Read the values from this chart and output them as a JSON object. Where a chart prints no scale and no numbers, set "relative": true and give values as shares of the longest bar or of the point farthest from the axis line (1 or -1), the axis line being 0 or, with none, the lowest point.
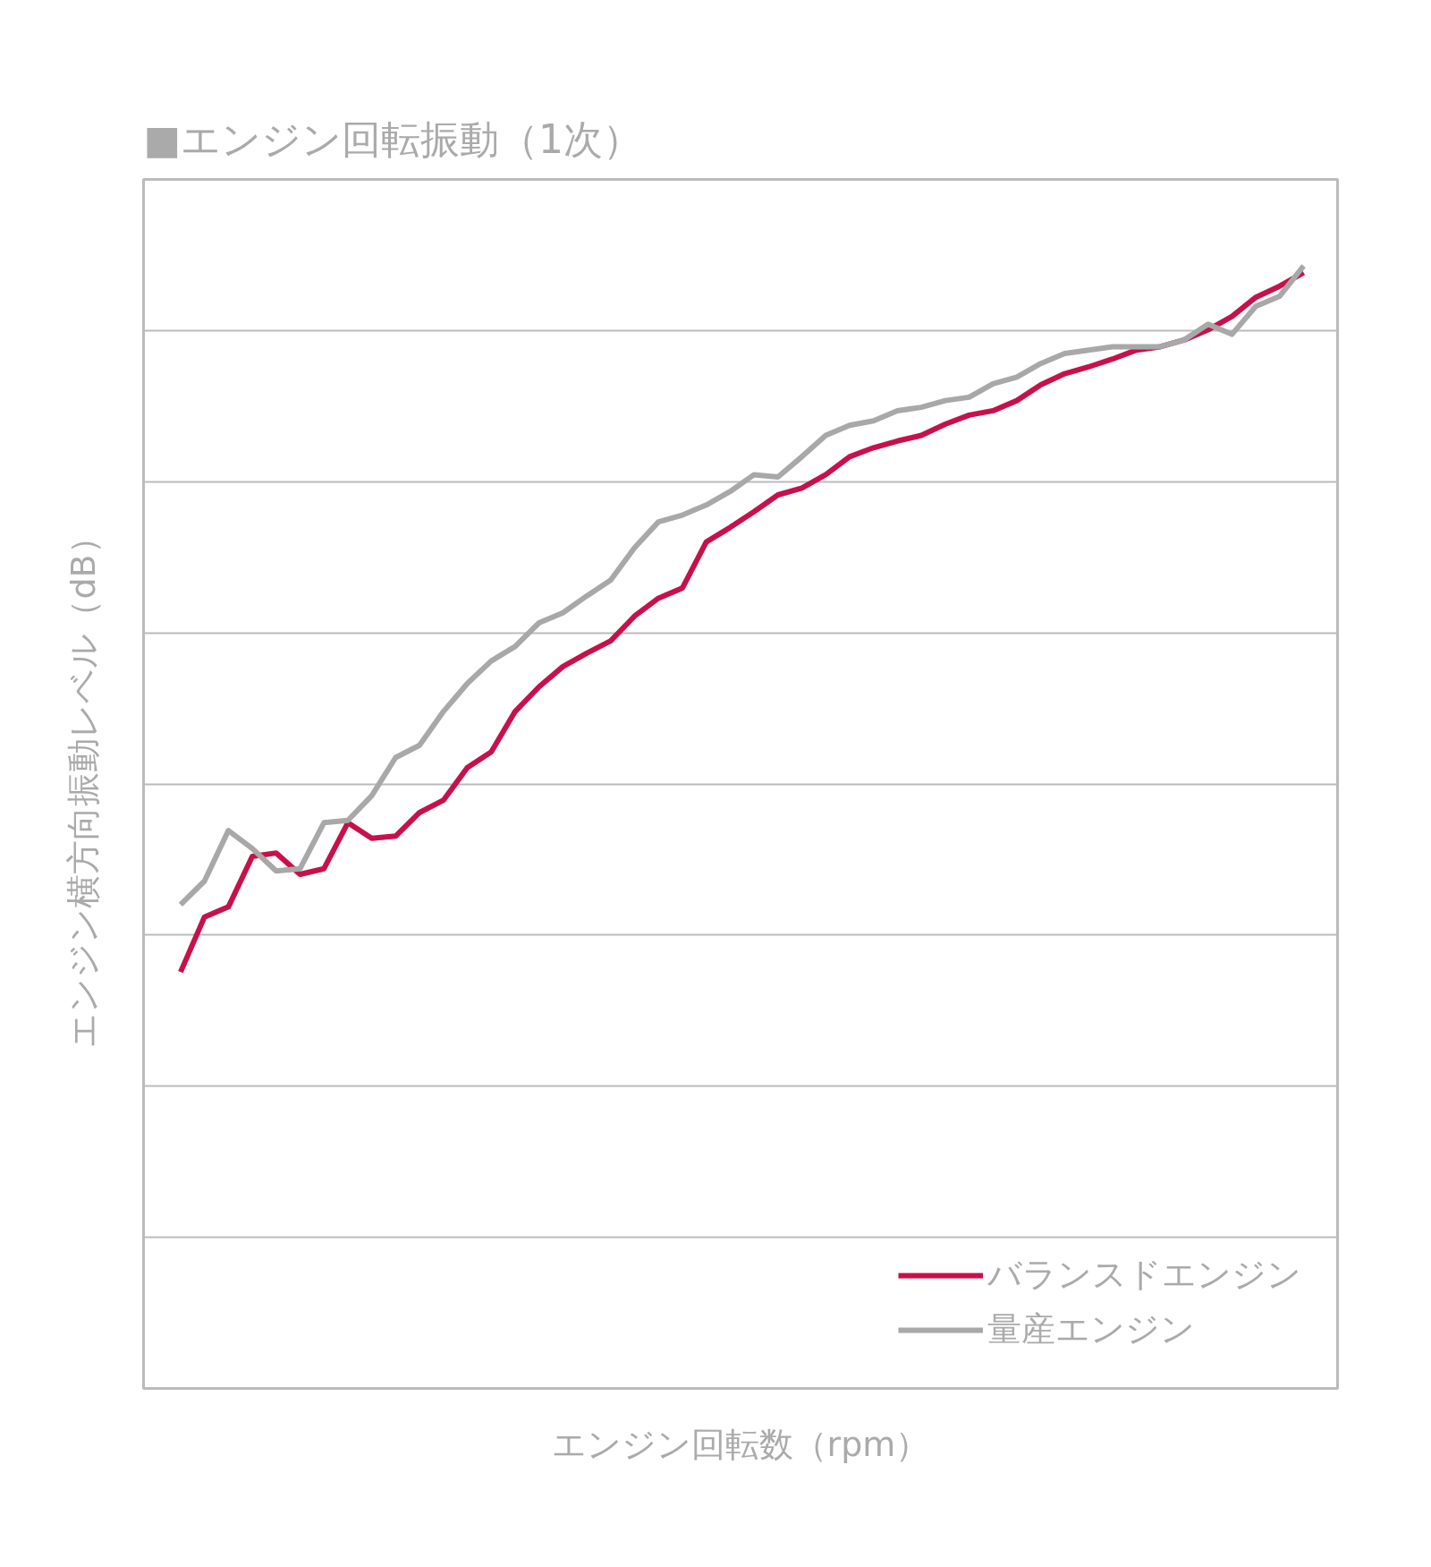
{
  "chart_data": {
    "type": "line",
    "title": "■エンジン回転振動（1次）",
    "xlabel": "エンジン回転数（rpm）",
    "ylabel": "エンジン横方向振動レベル（dB）",
    "relative": true,
    "grid": true,
    "legend": "bottom right",
    "line_style": "solid",
    "marker": "none",
    "categories": [
      null,
      null,
      null,
      null,
      null,
      null,
      null,
      null,
      null,
      null,
      null,
      null,
      null,
      null,
      null,
      null,
      null,
      null,
      null,
      null,
      null,
      null,
      null,
      null,
      null,
      null,
      null,
      null,
      null,
      null,
      null,
      null,
      null,
      null,
      null,
      null,
      null,
      null,
      null,
      null,
      null,
      null,
      null,
      null,
      null,
      null,
      null,
      null
    ],
    "series": [
      {
        "name": "バランスドエンジン",
        "color": "#c8104a",
        "values": [
          0.371,
          0.42,
          0.429,
          0.474,
          0.477,
          0.458,
          0.463,
          0.504,
          0.49,
          0.492,
          0.513,
          0.524,
          0.553,
          0.567,
          0.603,
          0.625,
          0.643,
          0.655,
          0.666,
          0.688,
          0.704,
          0.713,
          0.754,
          0.767,
          0.781,
          0.796,
          0.802,
          0.814,
          0.83,
          0.838,
          0.844,
          0.849,
          0.859,
          0.867,
          0.871,
          0.88,
          0.894,
          0.904,
          0.91,
          0.917,
          0.925,
          0.928,
          0.934,
          0.943,
          0.955,
          0.972,
          0.982,
          0.994
        ]
      },
      {
        "name": "量産エンジン",
        "color": "#a8a8a8",
        "values": [
          0.431,
          0.452,
          0.497,
          0.481,
          0.461,
          0.463,
          0.504,
          0.506,
          0.528,
          0.562,
          0.573,
          0.603,
          0.628,
          0.648,
          0.661,
          0.682,
          0.691,
          0.706,
          0.72,
          0.749,
          0.772,
          0.778,
          0.787,
          0.799,
          0.814,
          0.812,
          0.83,
          0.849,
          0.858,
          0.862,
          0.871,
          0.874,
          0.88,
          0.883,
          0.895,
          0.901,
          0.913,
          0.922,
          0.925,
          0.928,
          0.928,
          0.928,
          0.934,
          0.948,
          0.939,
          0.964,
          0.973,
          1.0
        ]
      }
    ]
  }
}
